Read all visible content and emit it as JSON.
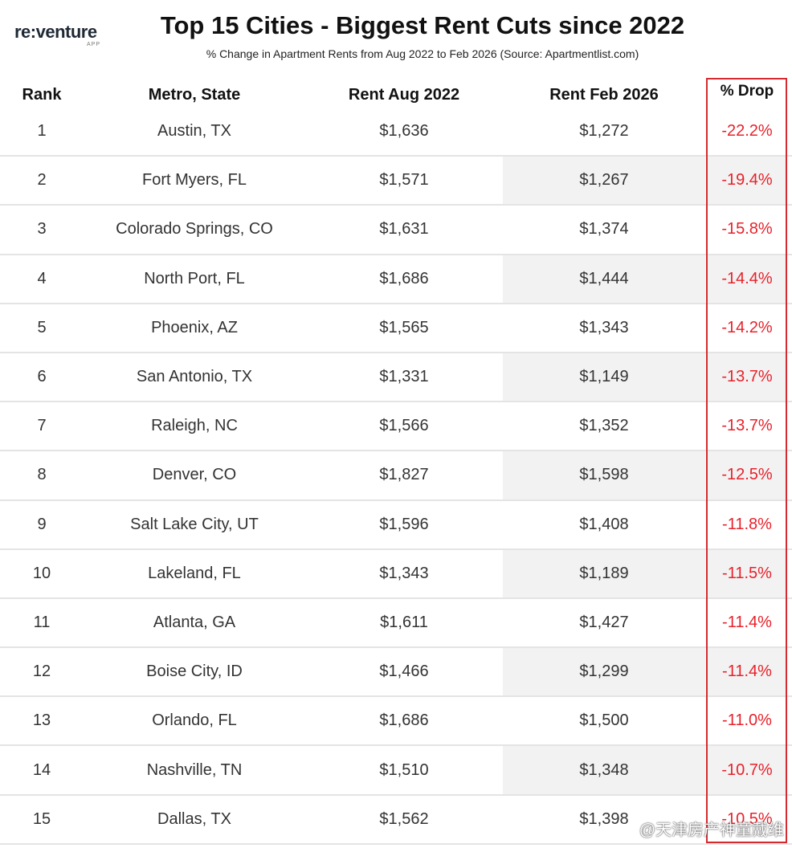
{
  "brand": {
    "name": "re:venture",
    "sub": "APP"
  },
  "chart_data": {
    "type": "table",
    "title": "Top 15 Cities - Biggest Rent Cuts since 2022",
    "subtitle": "% Change in Apartment Rents from Aug 2022 to Feb 2026 (Source: Apartmentlist.com)",
    "columns": [
      "Rank",
      "Metro, State",
      "Rent Aug 2022",
      "Rent Feb 2026",
      "% Drop"
    ],
    "rows": [
      {
        "rank": "1",
        "metro": "Austin, TX",
        "aug": "$1,636",
        "feb": "$1,272",
        "drop": "-22.2%"
      },
      {
        "rank": "2",
        "metro": "Fort Myers, FL",
        "aug": "$1,571",
        "feb": "$1,267",
        "drop": "-19.4%"
      },
      {
        "rank": "3",
        "metro": "Colorado Springs, CO",
        "aug": "$1,631",
        "feb": "$1,374",
        "drop": "-15.8%"
      },
      {
        "rank": "4",
        "metro": "North Port, FL",
        "aug": "$1,686",
        "feb": "$1,444",
        "drop": "-14.4%"
      },
      {
        "rank": "5",
        "metro": "Phoenix, AZ",
        "aug": "$1,565",
        "feb": "$1,343",
        "drop": "-14.2%"
      },
      {
        "rank": "6",
        "metro": "San Antonio, TX",
        "aug": "$1,331",
        "feb": "$1,149",
        "drop": "-13.7%"
      },
      {
        "rank": "7",
        "metro": "Raleigh, NC",
        "aug": "$1,566",
        "feb": "$1,352",
        "drop": "-13.7%"
      },
      {
        "rank": "8",
        "metro": "Denver, CO",
        "aug": "$1,827",
        "feb": "$1,598",
        "drop": "-12.5%"
      },
      {
        "rank": "9",
        "metro": "Salt Lake City, UT",
        "aug": "$1,596",
        "feb": "$1,408",
        "drop": "-11.8%"
      },
      {
        "rank": "10",
        "metro": "Lakeland, FL",
        "aug": "$1,343",
        "feb": "$1,189",
        "drop": "-11.5%"
      },
      {
        "rank": "11",
        "metro": "Atlanta, GA",
        "aug": "$1,611",
        "feb": "$1,427",
        "drop": "-11.4%"
      },
      {
        "rank": "12",
        "metro": "Boise City, ID",
        "aug": "$1,466",
        "feb": "$1,299",
        "drop": "-11.4%"
      },
      {
        "rank": "13",
        "metro": "Orlando, FL",
        "aug": "$1,686",
        "feb": "$1,500",
        "drop": "-11.0%"
      },
      {
        "rank": "14",
        "metro": "Nashville, TN",
        "aug": "$1,510",
        "feb": "$1,348",
        "drop": "-10.7%"
      },
      {
        "rank": "15",
        "metro": "Dallas, TX",
        "aug": "$1,562",
        "feb": "$1,398",
        "drop": "-10.5%"
      }
    ]
  },
  "colors": {
    "drop_text": "#e8212a",
    "frame": "#d42a30",
    "stripe": "#f2f2f2"
  },
  "watermark": "@天津房产神童戴维"
}
